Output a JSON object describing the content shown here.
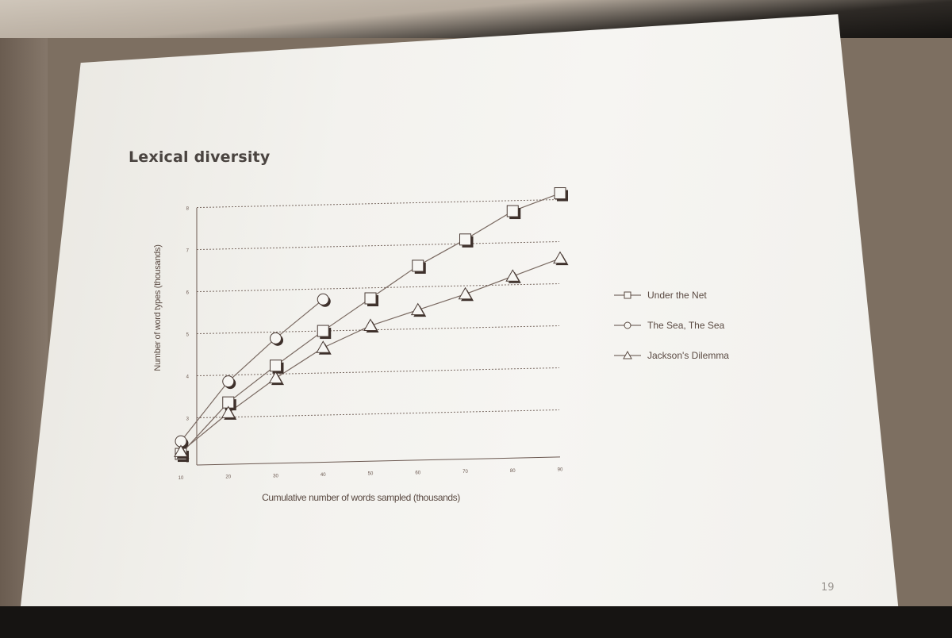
{
  "slide": {
    "title": "Lexical diversity",
    "page_number": "19"
  },
  "chart_data": {
    "type": "line",
    "title": "",
    "xlabel": "Cumulative number of words sampled (thousands)",
    "ylabel": "Number of word types (thousands)",
    "xlim": [
      10,
      90
    ],
    "ylim": [
      2,
      8
    ],
    "x_ticks": [
      "10",
      "20",
      "30",
      "40",
      "50",
      "60",
      "70",
      "80",
      "90"
    ],
    "y_ticks": [
      "2",
      "3",
      "4",
      "5",
      "6",
      "7",
      "8"
    ],
    "grid": "horizontal dotted",
    "legend_position": "right",
    "series": [
      {
        "name": "Under the Net",
        "marker": "square",
        "x": [
          10,
          20,
          30,
          40,
          50,
          60,
          70,
          80,
          90
        ],
        "values": [
          2.15,
          3.35,
          4.2,
          5.0,
          5.75,
          6.5,
          7.1,
          7.75,
          8.15
        ]
      },
      {
        "name": "The Sea, The Sea",
        "marker": "circle",
        "x": [
          10,
          20,
          30,
          40
        ],
        "values": [
          2.45,
          3.85,
          4.85,
          5.75
        ]
      },
      {
        "name": "Jackson's Dilemma",
        "marker": "triangle",
        "x": [
          10,
          20,
          30,
          40,
          50,
          60,
          70,
          80,
          90
        ],
        "values": [
          2.2,
          3.1,
          3.9,
          4.6,
          5.1,
          5.45,
          5.8,
          6.2,
          6.6
        ]
      }
    ]
  }
}
